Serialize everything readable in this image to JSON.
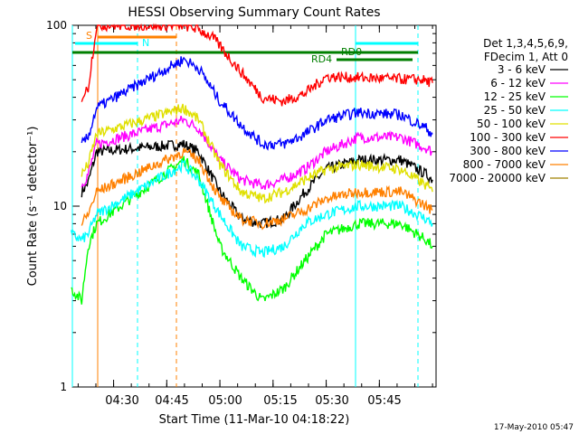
{
  "chart_data": {
    "type": "line",
    "title": "HESSI Observing Summary Count Rates",
    "xlabel": "Start Time (11-Mar-10 04:18:22)",
    "ylabel": "Count Rate (s⁻¹ detector⁻¹)",
    "y_scale": "log",
    "ylim": [
      1,
      100
    ],
    "xlim": [
      "04:18:22",
      "06:01:00"
    ],
    "x_ticks": [
      "04:30",
      "04:45",
      "05:00",
      "05:15",
      "05:30",
      "05:45"
    ],
    "y_ticks": [
      "1",
      "10",
      "100"
    ],
    "legend_header": [
      "Det 1,3,4,5,6,9,",
      "FDecim 1, Att 0"
    ],
    "series": [
      {
        "name": "3 - 6 keV",
        "color": "#000000",
        "values": [
          [
            4.35,
            12
          ],
          [
            4.38,
            13.5
          ],
          [
            4.42,
            20
          ],
          [
            4.83,
            22
          ],
          [
            4.9,
            20
          ],
          [
            5.0,
            12
          ],
          [
            5.1,
            8.5
          ],
          [
            5.2,
            8
          ],
          [
            5.3,
            8.5
          ],
          [
            5.4,
            12
          ],
          [
            5.5,
            16
          ],
          [
            5.65,
            18
          ],
          [
            5.85,
            18
          ],
          [
            5.97,
            15
          ],
          [
            6.0,
            14
          ]
        ]
      },
      {
        "name": "6 - 12 keV",
        "color": "#ff00ff",
        "values": [
          [
            4.35,
            13
          ],
          [
            4.38,
            15
          ],
          [
            4.42,
            22
          ],
          [
            4.83,
            30
          ],
          [
            4.9,
            27
          ],
          [
            5.0,
            18
          ],
          [
            5.1,
            14
          ],
          [
            5.2,
            13
          ],
          [
            5.3,
            14
          ],
          [
            5.4,
            16
          ],
          [
            5.5,
            20
          ],
          [
            5.65,
            24
          ],
          [
            5.85,
            24
          ],
          [
            5.97,
            21
          ],
          [
            6.0,
            20
          ]
        ]
      },
      {
        "name": "12 - 25 keV",
        "color": "#00ff00",
        "values": [
          [
            4.3,
            3.5
          ],
          [
            4.35,
            3
          ],
          [
            4.38,
            6
          ],
          [
            4.42,
            8
          ],
          [
            4.83,
            18
          ],
          [
            4.9,
            15
          ],
          [
            5.0,
            6
          ],
          [
            5.1,
            4
          ],
          [
            5.2,
            3
          ],
          [
            5.3,
            3.5
          ],
          [
            5.4,
            5
          ],
          [
            5.5,
            7
          ],
          [
            5.65,
            8
          ],
          [
            5.85,
            8
          ],
          [
            5.97,
            6.5
          ],
          [
            6.0,
            6
          ]
        ]
      },
      {
        "name": "25 - 50 keV",
        "color": "#00ffff",
        "values": [
          [
            4.3,
            7
          ],
          [
            4.35,
            6.5
          ],
          [
            4.38,
            7
          ],
          [
            4.42,
            9
          ],
          [
            4.83,
            17
          ],
          [
            4.9,
            14
          ],
          [
            5.0,
            9
          ],
          [
            5.1,
            6
          ],
          [
            5.2,
            5.5
          ],
          [
            5.3,
            6
          ],
          [
            5.4,
            8
          ],
          [
            5.5,
            9
          ],
          [
            5.65,
            10
          ],
          [
            5.85,
            10
          ],
          [
            5.97,
            8.5
          ],
          [
            6.0,
            8
          ]
        ]
      },
      {
        "name": "50 - 100 keV",
        "color": "#e0e000",
        "values": [
          [
            4.35,
            15
          ],
          [
            4.38,
            17
          ],
          [
            4.42,
            25
          ],
          [
            4.83,
            35
          ],
          [
            4.9,
            30
          ],
          [
            5.0,
            17
          ],
          [
            5.1,
            12
          ],
          [
            5.2,
            11
          ],
          [
            5.3,
            12
          ],
          [
            5.4,
            14
          ],
          [
            5.5,
            16
          ],
          [
            5.65,
            17
          ],
          [
            5.85,
            16
          ],
          [
            5.97,
            13
          ],
          [
            6.0,
            12
          ]
        ]
      },
      {
        "name": "100 - 300 keV",
        "color": "#ff0000",
        "values": [
          [
            4.35,
            40
          ],
          [
            4.38,
            45
          ],
          [
            4.42,
            100
          ],
          [
            4.83,
            100
          ],
          [
            4.9,
            95
          ],
          [
            4.97,
            85
          ],
          [
            5.1,
            55
          ],
          [
            5.2,
            40
          ],
          [
            5.3,
            38
          ],
          [
            5.4,
            42
          ],
          [
            5.5,
            52
          ],
          [
            5.95,
            50
          ],
          [
            6.0,
            48
          ]
        ]
      },
      {
        "name": "300 - 800 keV",
        "color": "#0000ff",
        "values": [
          [
            4.35,
            22
          ],
          [
            4.38,
            24
          ],
          [
            4.42,
            35
          ],
          [
            4.83,
            65
          ],
          [
            4.9,
            58
          ],
          [
            5.0,
            38
          ],
          [
            5.1,
            28
          ],
          [
            5.2,
            22
          ],
          [
            5.3,
            22
          ],
          [
            5.4,
            25
          ],
          [
            5.5,
            30
          ],
          [
            5.65,
            33
          ],
          [
            5.85,
            32
          ],
          [
            5.97,
            27
          ],
          [
            6.0,
            25
          ]
        ]
      },
      {
        "name": "800 - 7000 keV",
        "color": "#ff8000",
        "values": [
          [
            4.35,
            8
          ],
          [
            4.38,
            9
          ],
          [
            4.42,
            12
          ],
          [
            4.83,
            20
          ],
          [
            4.9,
            18
          ],
          [
            5.0,
            11
          ],
          [
            5.1,
            8.5
          ],
          [
            5.2,
            8
          ],
          [
            5.3,
            8.5
          ],
          [
            5.4,
            9.5
          ],
          [
            5.5,
            11
          ],
          [
            5.65,
            12
          ],
          [
            5.85,
            12
          ],
          [
            5.97,
            10
          ],
          [
            6.0,
            9.5
          ]
        ]
      },
      {
        "name": "7000 - 20000 keV",
        "color": "#a08000",
        "values": []
      }
    ],
    "annotations": [
      {
        "label": "S",
        "color": "#ff8000"
      },
      {
        "label": "N",
        "color": "#00ffff"
      },
      {
        "label": "RD0",
        "color": "#007f00"
      },
      {
        "label": "RD4",
        "color": "#007f00"
      }
    ]
  },
  "footer": {
    "timestamp": "17-May-2010 05:47"
  }
}
